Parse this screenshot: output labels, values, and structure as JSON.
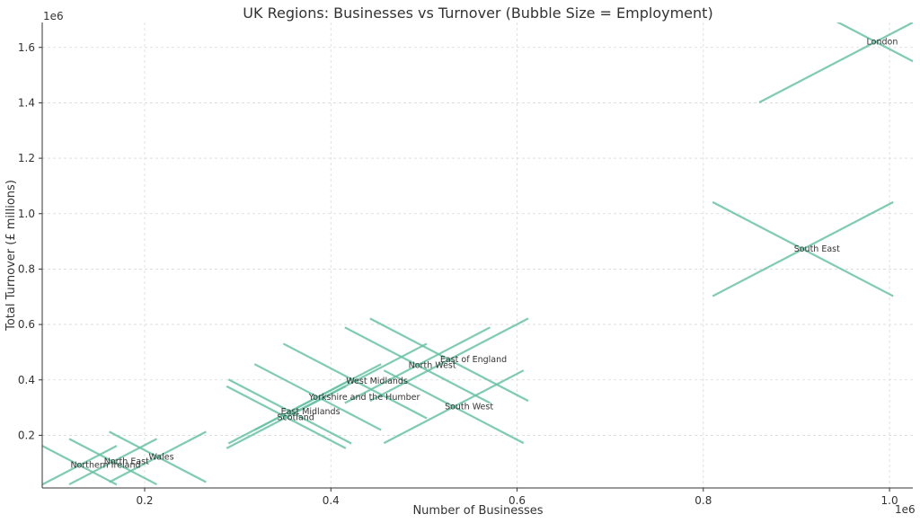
{
  "chart_data": {
    "type": "scatter",
    "title": "UK Regions: Businesses vs Turnover (Bubble Size = Employment)",
    "xlabel": "Number of Businesses",
    "ylabel": "Total Turnover (£ millions)",
    "x_offset_label": "1e6",
    "y_offset_label": "1e6",
    "xlim": [
      0.09,
      1.025
    ],
    "ylim": [
      0.01,
      1.69
    ],
    "x_ticks": [
      0.2,
      0.4,
      0.6,
      0.8,
      1.0
    ],
    "x_tick_labels": [
      "0.2",
      "0.4",
      "0.6",
      "0.8",
      "1.0"
    ],
    "y_ticks": [
      0.2,
      0.4,
      0.6,
      0.8,
      1.0,
      1.2,
      1.4,
      1.6
    ],
    "y_tick_labels": [
      "0.2",
      "0.4",
      "0.6",
      "0.8",
      "1.0",
      "1.2",
      "1.4",
      "1.6"
    ],
    "grid": true,
    "marker": "x",
    "marker_color": "#66c2a5",
    "points": [
      {
        "label": "London",
        "x": 0.985,
        "y": 1.62,
        "size": 0.125
      },
      {
        "label": "South East",
        "x": 0.907,
        "y": 0.872,
        "size": 0.097
      },
      {
        "label": "East of England",
        "x": 0.527,
        "y": 0.473,
        "size": 0.085
      },
      {
        "label": "North West",
        "x": 0.493,
        "y": 0.453,
        "size": 0.078
      },
      {
        "label": "South West",
        "x": 0.532,
        "y": 0.303,
        "size": 0.075
      },
      {
        "label": "West Midlands",
        "x": 0.426,
        "y": 0.396,
        "size": 0.077
      },
      {
        "label": "Yorkshire and the Humber",
        "x": 0.386,
        "y": 0.338,
        "size": 0.068
      },
      {
        "label": "East Midlands",
        "x": 0.356,
        "y": 0.286,
        "size": 0.066
      },
      {
        "label": "Scotland",
        "x": 0.352,
        "y": 0.265,
        "size": 0.064
      },
      {
        "label": "Wales",
        "x": 0.214,
        "y": 0.122,
        "size": 0.052
      },
      {
        "label": "North East",
        "x": 0.166,
        "y": 0.105,
        "size": 0.047
      },
      {
        "label": "Northern Ireland",
        "x": 0.13,
        "y": 0.092,
        "size": 0.04
      }
    ]
  }
}
